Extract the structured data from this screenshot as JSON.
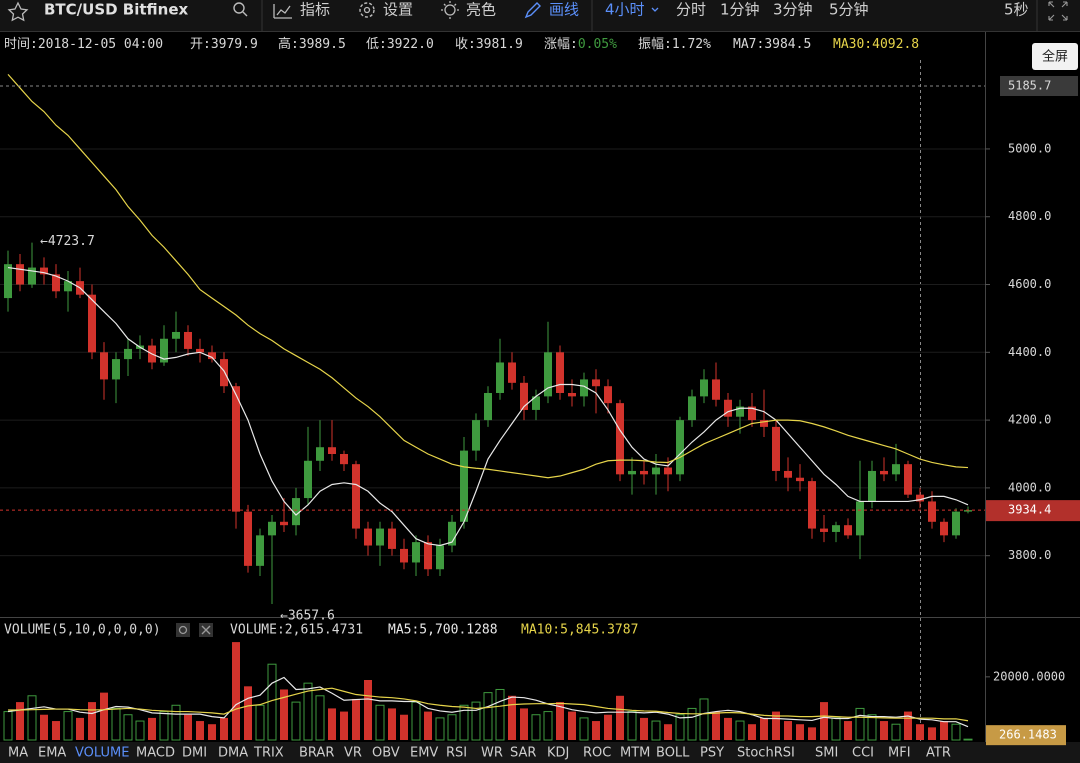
{
  "toolbar": {
    "symbol": "BTC/USD Bitfinex",
    "buttons": [
      "指标",
      "设置",
      "亮色",
      "画线"
    ],
    "intervals": [
      "4小时",
      "分时",
      "1分钟",
      "3分钟",
      "5分钟"
    ],
    "refresh": "5秒",
    "tooltip": "全屏"
  },
  "info": [
    {
      "label": "时间:",
      "value": "2018-12-05 04:00"
    },
    {
      "label": "开:",
      "value": "3979.9"
    },
    {
      "label": "高:",
      "value": "3989.5"
    },
    {
      "label": "低:",
      "value": "3922.0"
    },
    {
      "label": "收:",
      "value": "3981.9"
    },
    {
      "label": "涨幅:",
      "value": "0.05%"
    },
    {
      "label": "振幅:",
      "value": "1.72%"
    },
    {
      "label": "MA7:",
      "value": "3984.5"
    },
    {
      "label": "MA30:",
      "value": "4092.8"
    }
  ],
  "chart_data": [
    {
      "type": "candlestick",
      "open": [
        4560,
        4660,
        4600,
        4650,
        4630,
        4580,
        4610,
        4570,
        4400,
        4320,
        4380,
        4410,
        4420,
        4370,
        4440,
        4460,
        4410,
        4400,
        4380,
        4300,
        3930,
        3770,
        3860,
        3900,
        3890,
        3970,
        4080,
        4120,
        4100,
        4070,
        3880,
        3830,
        3880,
        3820,
        3780,
        3840,
        3760,
        3830,
        3900,
        4110,
        4200,
        4280,
        4370,
        4310,
        4230,
        4270,
        4400,
        4280,
        4270,
        4320,
        4300,
        4250,
        4040,
        4050,
        4040,
        4060,
        4040,
        4200,
        4270,
        4320,
        4260,
        4210,
        4240,
        4200,
        4180,
        4050,
        4030,
        4020,
        3880,
        3870,
        3890,
        3860,
        3960,
        4050,
        4040,
        4070,
        3980,
        3960,
        3900,
        3860,
        3930
      ],
      "high": [
        4700,
        4690,
        4723.7,
        4680,
        4660,
        4640,
        4650,
        4600,
        4430,
        4400,
        4440,
        4450,
        4440,
        4480,
        4520,
        4480,
        4440,
        4420,
        4400,
        4310,
        3950,
        3880,
        3920,
        3970,
        4000,
        4180,
        4200,
        4200,
        4110,
        4080,
        3900,
        3900,
        3900,
        3850,
        3860,
        3860,
        3850,
        3920,
        4150,
        4220,
        4300,
        4440,
        4400,
        4330,
        4290,
        4490,
        4420,
        4320,
        4340,
        4350,
        4320,
        4260,
        4090,
        4080,
        4100,
        4090,
        4210,
        4290,
        4350,
        4370,
        4280,
        4260,
        4280,
        4290,
        4200,
        4090,
        4070,
        4030,
        3920,
        3900,
        3910,
        4080,
        4080,
        4090,
        4130,
        4080,
        4000,
        3990,
        3910,
        3940,
        3945
      ],
      "low": [
        4520,
        4580,
        4590,
        4600,
        4560,
        4520,
        4560,
        4380,
        4260,
        4250,
        4330,
        4380,
        4350,
        4360,
        4400,
        4390,
        4370,
        4370,
        4280,
        3880,
        3750,
        3740,
        3657.6,
        3870,
        3860,
        3950,
        4050,
        4080,
        4050,
        3850,
        3800,
        3770,
        3800,
        3760,
        3740,
        3740,
        3740,
        3810,
        3880,
        4080,
        4180,
        4260,
        4290,
        4200,
        4200,
        4250,
        4260,
        4240,
        4240,
        4220,
        4220,
        4020,
        3980,
        4010,
        3980,
        3990,
        4020,
        4180,
        4250,
        4240,
        4180,
        4160,
        4180,
        4150,
        4020,
        3990,
        3990,
        3850,
        3840,
        3840,
        3850,
        3790,
        3940,
        4020,
        4020,
        3970,
        3940,
        3880,
        3840,
        3850,
        3925
      ],
      "close": [
        4660,
        4600,
        4650,
        4630,
        4580,
        4610,
        4570,
        4400,
        4320,
        4380,
        4410,
        4420,
        4370,
        4440,
        4460,
        4410,
        4400,
        4380,
        4300,
        3930,
        3770,
        3860,
        3900,
        3890,
        3970,
        4080,
        4120,
        4100,
        4070,
        3880,
        3830,
        3880,
        3820,
        3780,
        3840,
        3760,
        3830,
        3900,
        4110,
        4200,
        4280,
        4370,
        4310,
        4230,
        4270,
        4400,
        4280,
        4270,
        4320,
        4300,
        4250,
        4040,
        4050,
        4040,
        4060,
        4040,
        4200,
        4270,
        4320,
        4260,
        4210,
        4240,
        4200,
        4180,
        4050,
        4030,
        4020,
        3880,
        3870,
        3890,
        3860,
        3960,
        4050,
        4040,
        4070,
        3980,
        3960,
        3900,
        3860,
        3930,
        3934.4
      ],
      "up_color": "#3f9a3f",
      "down_color": "#d2332c",
      "series": [
        {
          "color": "#e8e8e8",
          "values": [
            4650,
            4645,
            4640,
            4635,
            4625,
            4610,
            4590,
            4555,
            4520,
            4485,
            4440,
            4415,
            4395,
            4380,
            4385,
            4395,
            4400,
            4385,
            4345,
            4275,
            4200,
            4100,
            4020,
            3960,
            3920,
            3950,
            3990,
            4010,
            4015,
            4010,
            3990,
            3955,
            3930,
            3890,
            3850,
            3835,
            3830,
            3840,
            3900,
            3990,
            4085,
            4140,
            4190,
            4240,
            4270,
            4295,
            4305,
            4305,
            4300,
            4280,
            4230,
            4170,
            4120,
            4085,
            4070,
            4065,
            4100,
            4135,
            4165,
            4200,
            4225,
            4235,
            4235,
            4225,
            4200,
            4160,
            4120,
            4080,
            4040,
            4010,
            3975,
            3960,
            3960,
            3960,
            3960,
            3960,
            3965,
            3975,
            3975,
            3965,
            3950
          ]
        },
        {
          "color": "#e6d44a",
          "values": [
            5220,
            5180,
            5140,
            5110,
            5070,
            5040,
            5000,
            4960,
            4920,
            4880,
            4830,
            4790,
            4745,
            4710,
            4670,
            4630,
            4585,
            4560,
            4535,
            4510,
            4480,
            4455,
            4435,
            4410,
            4390,
            4370,
            4350,
            4325,
            4295,
            4265,
            4240,
            4210,
            4175,
            4140,
            4120,
            4100,
            4085,
            4070,
            4062,
            4058,
            4055,
            4050,
            4045,
            4040,
            4035,
            4030,
            4035,
            4045,
            4055,
            4070,
            4080,
            4082,
            4082,
            4080,
            4076,
            4075,
            4090,
            4110,
            4130,
            4145,
            4160,
            4175,
            4190,
            4195,
            4200,
            4200,
            4198,
            4190,
            4180,
            4168,
            4155,
            4145,
            4135,
            4125,
            4115,
            4100,
            4085,
            4075,
            4068,
            4062,
            4060
          ]
        }
      ],
      "ylim": [
        3625,
        5345
      ],
      "yticks": [
        {
          "value": 3800,
          "label": "3800.0"
        },
        {
          "value": 4000,
          "label": "4000.0"
        },
        {
          "value": 4200,
          "label": "4200.0"
        },
        {
          "value": 4400,
          "label": "4400.0"
        },
        {
          "value": 4600,
          "label": "4600.0"
        },
        {
          "value": 4800,
          "label": "4800.0"
        },
        {
          "value": 5000,
          "label": "5000.0"
        }
      ],
      "grid": true,
      "last_price": 3934.4,
      "crosshair_price": 5185.7,
      "annotations": [
        {
          "value": 4723.7,
          "label": "←4723.7"
        },
        {
          "value": 3657.6,
          "label": "←3657.6"
        }
      ]
    },
    {
      "type": "bar",
      "title": "VOLUME(5,10,0,0,0,0)",
      "values": [
        9000,
        12000,
        14000,
        8000,
        6000,
        9000,
        7000,
        12000,
        15000,
        10000,
        8000,
        6000,
        7000,
        9000,
        11000,
        8000,
        6000,
        5000,
        7000,
        31000,
        17000,
        11000,
        24000,
        16000,
        12000,
        18000,
        14000,
        10000,
        9000,
        13000,
        19000,
        11000,
        10000,
        8000,
        12000,
        9000,
        7000,
        8000,
        11000,
        12000,
        15000,
        16000,
        14000,
        10000,
        8000,
        9000,
        12000,
        9000,
        7000,
        6000,
        8000,
        14000,
        9000,
        7000,
        6000,
        5000,
        8000,
        10000,
        13000,
        9000,
        7000,
        6000,
        5000,
        7000,
        9000,
        6000,
        5000,
        4000,
        12000,
        7000,
        6000,
        10000,
        8000,
        6000,
        5000,
        9000,
        5000,
        4000,
        6000,
        5000,
        266.1483
      ],
      "series": [
        {
          "color": "#e8e8e8",
          "values": [
            9000,
            9500,
            10000,
            10500,
            9800,
            9800,
            8800,
            8400,
            9600,
            10600,
            10400,
            9600,
            8600,
            8400,
            8200,
            8200,
            8200,
            7400,
            7000,
            11200,
            13200,
            14200,
            18000,
            19800,
            16000,
            16200,
            16800,
            14800,
            12600,
            12800,
            13000,
            12400,
            12400,
            12200,
            12200,
            10000,
            9200,
            8800,
            9400,
            9400,
            10600,
            12200,
            13600,
            13400,
            12600,
            11400,
            10600,
            9600,
            9000,
            8600,
            8800,
            8800,
            8800,
            8600,
            8800,
            8200,
            7000,
            7200,
            8400,
            9000,
            9400,
            9000,
            8000,
            6800,
            6800,
            6600,
            6400,
            6200,
            7200,
            6800,
            6800,
            7800,
            7400,
            7400,
            7200,
            7600,
            6600,
            6400,
            5800,
            5800,
            4200
          ]
        },
        {
          "color": "#e6d44a",
          "values": [
            9500,
            9500,
            9600,
            9700,
            9800,
            9800,
            9600,
            9500,
            9600,
            9800,
            10000,
            9800,
            9400,
            9200,
            9000,
            9000,
            8800,
            8600,
            8200,
            9800,
            10800,
            11200,
            12500,
            13500,
            14500,
            15500,
            16000,
            16400,
            15400,
            14400,
            14000,
            13600,
            13400,
            13000,
            12400,
            11500,
            11000,
            10600,
            10400,
            10000,
            10300,
            10700,
            11200,
            11400,
            11500,
            11500,
            11600,
            11400,
            11200,
            10600,
            10000,
            9700,
            9400,
            9200,
            9100,
            8700,
            8400,
            8300,
            8300,
            8500,
            8700,
            8600,
            8200,
            7800,
            7600,
            7600,
            7400,
            7400,
            7600,
            7400,
            7200,
            7200,
            7100,
            7000,
            6900,
            6900,
            6900,
            6900,
            6700,
            6700,
            6100
          ]
        }
      ],
      "ylim": [
        0,
        38000
      ],
      "yticks": [
        {
          "value": 20000,
          "label": "20000.0000"
        }
      ],
      "last_value": 266.1483,
      "readouts": [
        "VOLUME:2,615.4731",
        "MA5:5,700.1288",
        "MA10:5,845.3787"
      ]
    }
  ],
  "tabs": [
    "MA",
    "EMA",
    "VOLUME",
    "MACD",
    "DMI",
    "DMA",
    "TRIX",
    "BRAR",
    "VR",
    "OBV",
    "EMV",
    "RSI",
    "WR",
    "SAR",
    "KDJ",
    "ROC",
    "MTM",
    "BOLL",
    "PSY",
    "StochRSI",
    "SMI",
    "CCI",
    "MFI",
    "ATR"
  ],
  "active_tab": "VOLUME"
}
